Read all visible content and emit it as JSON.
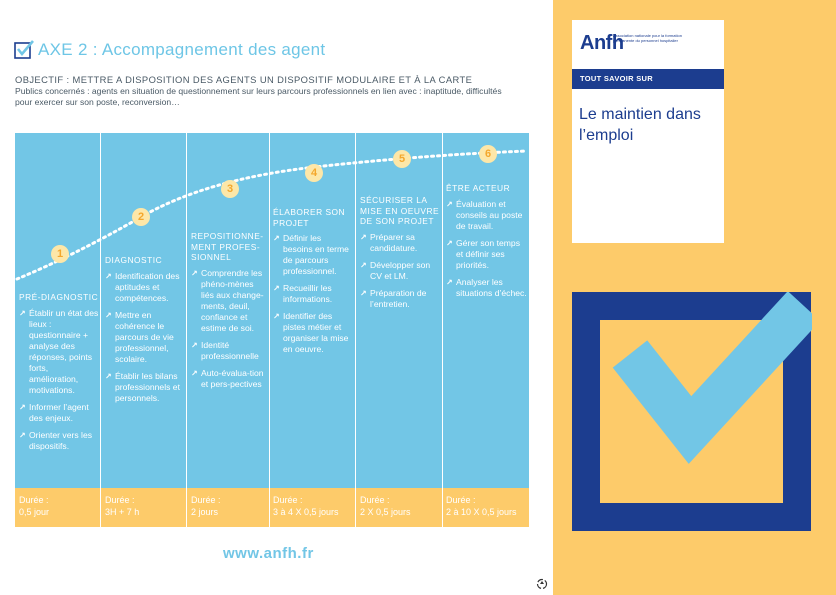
{
  "header": {
    "title": "AXE 2 : Accompagnement des agent",
    "objective": "OBJECTIF : METTRE A DISPOSITION DES AGENTS UN DISPOSITIF MODULAIRE ET À LA CARTE",
    "publics": "Publics concernés : agents en situation de questionnement sur leurs parcours professionnels en lien avec : inaptitude, difficultés pour exercer sur son poste, reconversion…"
  },
  "steps": [
    {
      "num": "1",
      "title": "PRÉ-DIAGNOSTIC",
      "items": [
        "Établir un état des lieux : questionnaire + analyse des réponses, points forts, amélioration, motivations.",
        "Informer l’agent des enjeux.",
        "Orienter vers les dispositifs."
      ],
      "duration_label": "Durée :",
      "duration": "0,5 jour"
    },
    {
      "num": "2",
      "title": "DIAGNOSTIC",
      "items": [
        "Identification des aptitudes et compétences.",
        "Mettre en cohérence le parcours de vie professionnel, scolaire.",
        "Établir les bilans professionnels et personnels."
      ],
      "duration_label": "Durée :",
      "duration": "3H + 7 h"
    },
    {
      "num": "3",
      "title": "REPOSITIONNE-MENT PROFES-SIONNEL",
      "items": [
        "Comprendre les phéno-mènes liés aux change-ments, deuil, confiance et estime de soi.",
        "Identité professionnelle",
        "Auto-évalua-tion et pers-pectives"
      ],
      "duration_label": "Durée :",
      "duration": "2 jours"
    },
    {
      "num": "4",
      "title": "ÉLABORER SON PROJET",
      "items": [
        "Définir les besoins en terme de parcours professionnel.",
        "Recueillir les informations.",
        "Identifier des pistes métier et organiser la mise en oeuvre."
      ],
      "duration_label": "Durée :",
      "duration": "3 à 4 X 0,5 jours"
    },
    {
      "num": "5",
      "title": "SÉCURISER LA MISE EN OEUVRE DE SON PROJET",
      "items": [
        "Préparer sa candidature.",
        "Développer son CV et LM.",
        "Préparation de l’entretien."
      ],
      "duration_label": "Durée :",
      "duration": "2 X 0,5 jours"
    },
    {
      "num": "6",
      "title": "ÊTRE ACTEUR",
      "items": [
        "Évaluation et conseils au poste de travail.",
        "Gérer son temps et définir ses priorités.",
        "Analyser les situations d’échec."
      ],
      "duration_label": "Durée :",
      "duration": "2 à 10 X 0,5 jours"
    }
  ],
  "footer": {
    "website": "www.anfh.fr"
  },
  "card": {
    "logo": "Anfh",
    "logo_tagline": "Association nationale pour la formation permanente du personnel hospitalier",
    "band": "TOUT SAVOIR SUR",
    "title": "Le maintien dans l’emploi"
  },
  "colors": {
    "blue": "#72c6e6",
    "yellow": "#fdcb6a",
    "navy": "#1c3d8f",
    "white": "#ffffff"
  },
  "icons": {
    "title": "checkbox-check-icon",
    "cover": "large-checkbox-check-icon",
    "footer": "recycle-icon"
  }
}
